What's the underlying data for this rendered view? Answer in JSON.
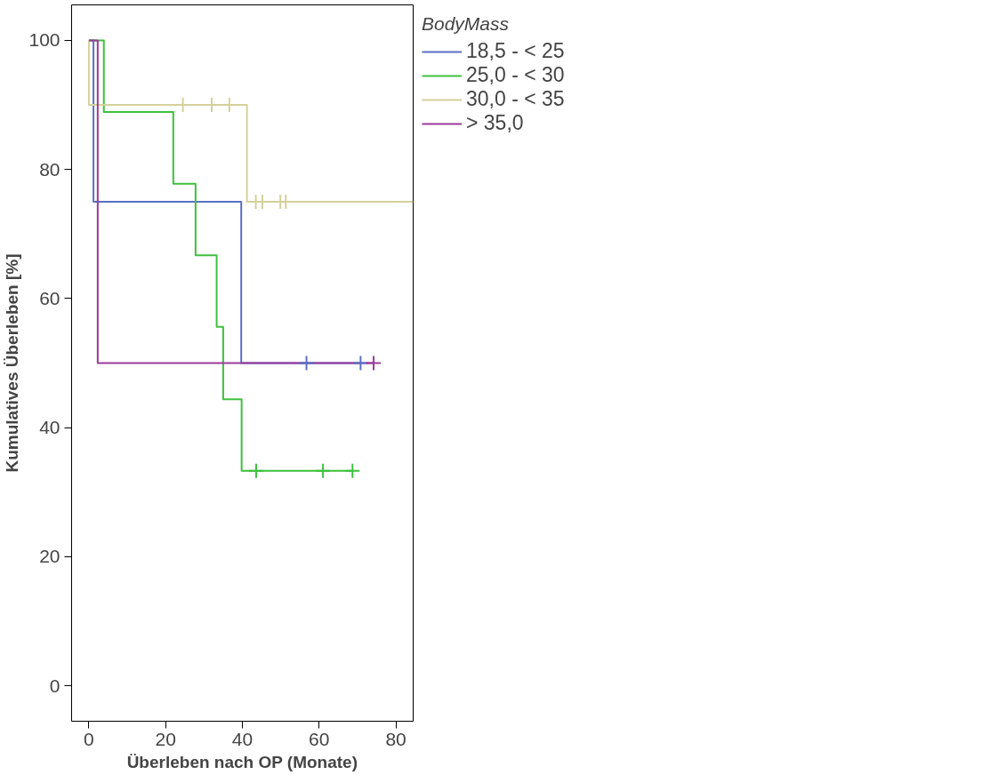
{
  "chart_data": {
    "type": "step",
    "xlabel": "Überleben nach OP (Monate)",
    "ylabel": "Kumulatives Überleben [%]",
    "legend_title": "BodyMass",
    "legend": "right",
    "grid": false,
    "line_style": "solid",
    "xlim": [
      -4.5,
      84.5
    ],
    "xticks": [
      0,
      20,
      40,
      60,
      80
    ],
    "ylim": [
      -5.5,
      105.5
    ],
    "yticks": [
      0,
      20,
      40,
      60,
      80,
      100
    ],
    "series": [
      {
        "name": "18,5 - < 25",
        "color": "#5a6fc4",
        "marker": "none",
        "x": [
          0,
          1.2,
          39.7,
          70.8
        ],
        "values": [
          100,
          75,
          50,
          50
        ]
      },
      {
        "name": "25,0 - < 30",
        "color": "#3ec13e",
        "marker": "none",
        "x": [
          0,
          3.9,
          22.0,
          27.8,
          33.3,
          35.0,
          39.8,
          68.7
        ],
        "values": [
          100,
          88.9,
          77.8,
          66.7,
          55.6,
          44.4,
          33.3,
          33.3
        ]
      },
      {
        "name": "30,0 - < 35",
        "color": "#d6d09a",
        "marker": "none",
        "x": [
          0,
          0,
          41.2,
          84.5
        ],
        "values": [
          100,
          90,
          75,
          75
        ]
      },
      {
        "name": "> 35,0",
        "color": "#9b3a9b",
        "marker": "none",
        "x": [
          0,
          2.3,
          74.2
        ],
        "values": [
          100,
          50,
          50
        ]
      },
      {
        "type": "scatter",
        "color": "#5a6fc4",
        "marker": "cross",
        "x": [
          56.7,
          70.8
        ],
        "values": [
          50,
          50
        ]
      },
      {
        "type": "scatter",
        "color": "#3ec13e",
        "marker": "cross",
        "x": [
          43.6,
          61.0,
          68.7
        ],
        "values": [
          33.3,
          33.3,
          33.3
        ]
      },
      {
        "type": "scatter",
        "color": "#d6d09a",
        "marker": "cross",
        "x": [
          24.5,
          32.0,
          36.6,
          43.5,
          45.2,
          49.9,
          51.3
        ],
        "values": [
          90,
          90,
          90,
          75,
          75,
          75,
          75
        ]
      },
      {
        "type": "scatter",
        "color": "#9b3a9b",
        "marker": "cross",
        "x": [
          74.2
        ],
        "values": [
          50
        ]
      }
    ]
  }
}
